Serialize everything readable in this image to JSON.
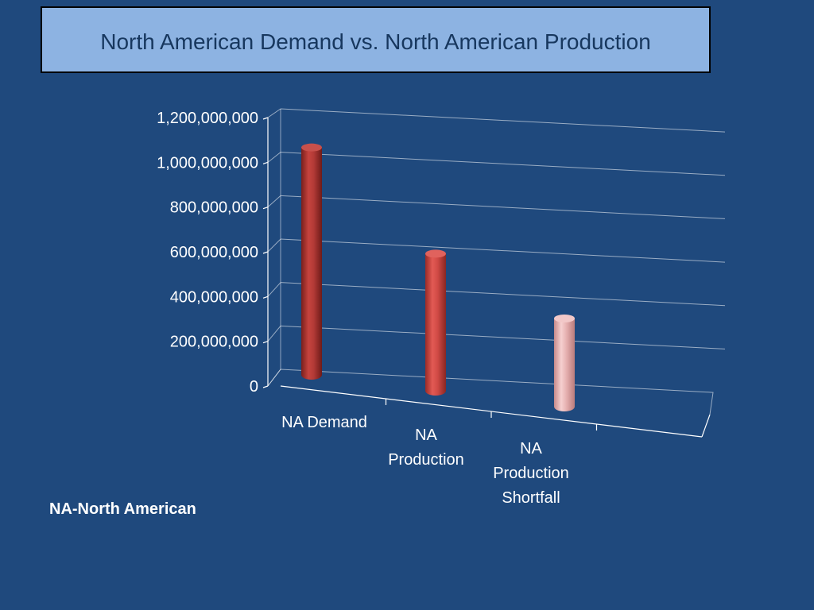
{
  "title": {
    "part1": "North",
    "part2": "American",
    "part3": "Demand vs. North American Production"
  },
  "footnote": "NA-North American",
  "colors": {
    "background": "#1f497d",
    "title_box": "#8db3e2",
    "bar_dark": "#b33a36",
    "bar_mid": "#d04a45",
    "bar_light": "#e6b0b0"
  },
  "chart_data": {
    "type": "bar",
    "style": "3d-cylinder",
    "categories": [
      [
        "NA Demand"
      ],
      [
        "NA",
        "Production"
      ],
      [
        "NA",
        "Production",
        "Shortfall"
      ]
    ],
    "values": [
      1070000000,
      645000000,
      415000000
    ],
    "bar_colors": [
      "#b33a36",
      "#d04a45",
      "#e6b0b0"
    ],
    "ylim": [
      0,
      1200000000
    ],
    "yticks": [
      0,
      200000000,
      400000000,
      600000000,
      800000000,
      1000000000,
      1200000000
    ],
    "ytick_labels": [
      "0",
      "200,000,000",
      "400,000,000",
      "600,000,000",
      "800,000,000",
      "1,000,000,000",
      "1,200,000,000"
    ],
    "grid": true,
    "legend": "none"
  }
}
